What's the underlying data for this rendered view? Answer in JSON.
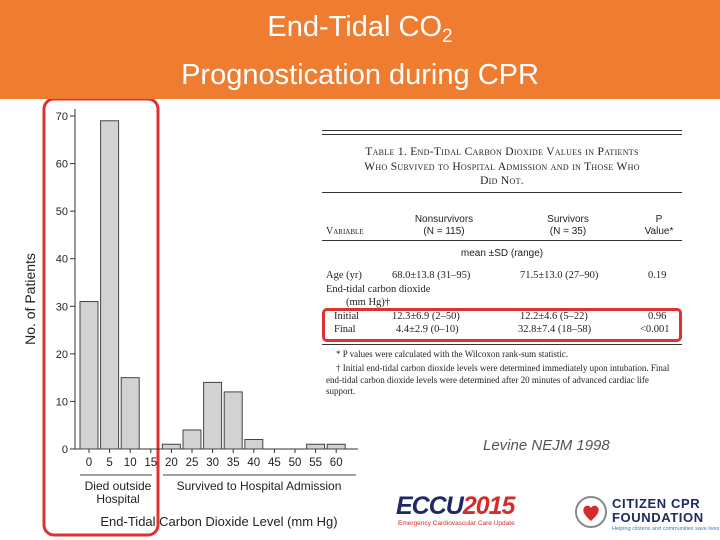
{
  "header": {
    "title_line1": "End-Tidal CO",
    "title_sub": "2",
    "title_line2": "Prognostication during CPR"
  },
  "colors": {
    "header_bg": "#ee7d31",
    "highlight": "#e03030",
    "bar_fill": "#d2d2d2"
  },
  "chart_data": {
    "type": "bar",
    "categories": [
      "0",
      "5",
      "10",
      "15",
      "20",
      "25",
      "30",
      "35",
      "40",
      "45",
      "50",
      "55",
      "60"
    ],
    "values": [
      31,
      69,
      15,
      0,
      1,
      4,
      14,
      12,
      2,
      0,
      0,
      1,
      1
    ],
    "yticks": [
      "0",
      "10",
      "20",
      "30",
      "40",
      "50",
      "60",
      "70"
    ],
    "ylim": [
      0,
      70
    ],
    "ylabel": "No. of Patients",
    "xlabel": "End-Tidal Carbon Dioxide Level (mm Hg)",
    "group_labels": [
      "Died outside",
      "Hospital",
      "Survived to Hospital Admission"
    ]
  },
  "table": {
    "title_lines": [
      "Table 1. End-Tidal Carbon Dioxide Values in Patients",
      "Who Survived to Hospital Admission and in Those Who",
      "Did Not."
    ],
    "col_variable": "Variable",
    "col_nonsurvivors": "Nonsurvivors",
    "col_nonsurvivors_n": "(N = 115)",
    "col_survivors": "Survivors",
    "col_survivors_n": "(N = 35)",
    "col_p": "P",
    "col_p_value": "Value*",
    "subheader": "mean ±SD (range)",
    "rows": [
      {
        "variable": "Age (yr)",
        "nonsurvivors": "68.0±13.8 (31–95)",
        "survivors": "71.5±13.0 (27–90)",
        "p": "0.19"
      },
      {
        "variable": "End-tidal carbon dioxide",
        "nonsurvivors": "",
        "survivors": "",
        "p": ""
      },
      {
        "variable": "(mm Hg)†",
        "nonsurvivors": "",
        "survivors": "",
        "p": ""
      },
      {
        "variable": "Initial",
        "nonsurvivors": "12.3±6.9 (2–50)",
        "survivors": "12.2±4.6 (5–22)",
        "p": "0.96"
      },
      {
        "variable": "Final",
        "nonsurvivors": "4.4±2.9 (0–10)",
        "survivors": "32.8±7.4 (18–58)",
        "p": "<0.001"
      }
    ],
    "notes": [
      "* P values were calculated with the Wilcoxon rank-sum statistic.",
      "† Initial end-tidal carbon dioxide levels were determined immediately upon intubation. Final end-tidal carbon dioxide levels were determined after 20 minutes of advanced cardiac life support."
    ]
  },
  "citation": "Levine NEJM 1998",
  "logos": {
    "eccu_main": "ECCU",
    "eccu_year": "2015",
    "eccu_tagline": "Emergency Cardiovascular Care Update",
    "ccpr_line1": "CITIZEN CPR",
    "ccpr_line2": "FOUNDATION",
    "ccpr_tagline": "Helping citizens and communities save lives"
  }
}
